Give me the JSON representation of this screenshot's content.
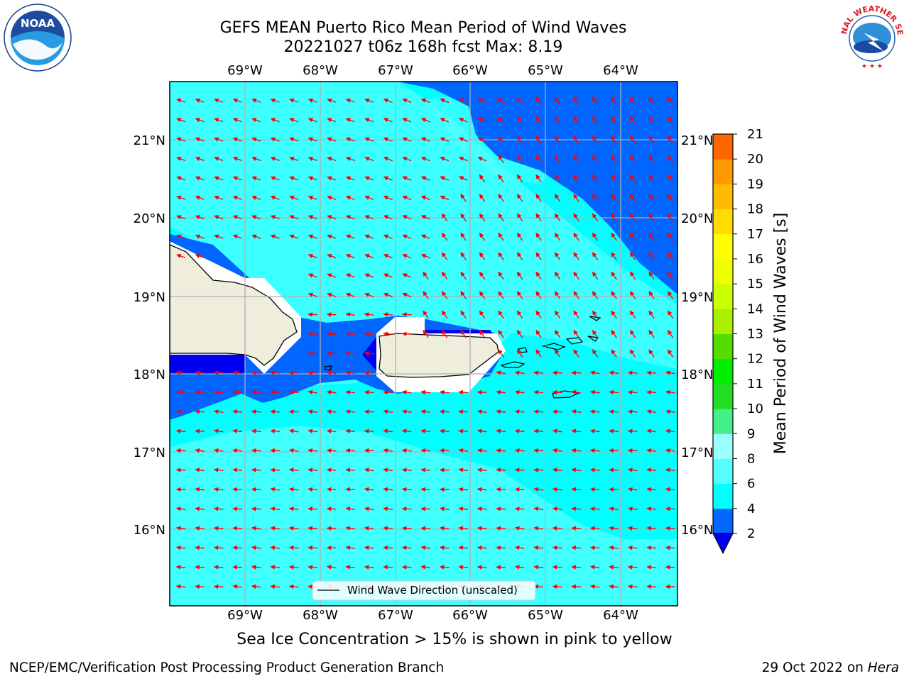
{
  "header": {
    "title_line1": "GEFS MEAN Puerto Rico Mean Period of Wind Waves",
    "title_line2": "20221027 t06z 168h fcst   Max: 8.19"
  },
  "map": {
    "lon_ticks": [
      "69°W",
      "68°W",
      "67°W",
      "66°W",
      "65°W",
      "64°W"
    ],
    "lat_ticks": [
      "21°N",
      "20°N",
      "19°N",
      "18°N",
      "17°N",
      "16°N"
    ],
    "legend_label": "Wind Wave Direction (unscaled)",
    "arrow_color": "#ff0000",
    "land_color": "#efeedc",
    "ocean_colors": {
      "2-4": "#0066ff",
      "0-2": "#0000ee",
      "4-6": "#00ffff",
      "6-8": "#55ffff"
    }
  },
  "colorbar": {
    "label": "Mean Period of Wind Waves [s]",
    "ticks": [
      "2",
      "4",
      "6",
      "8",
      "9",
      "10",
      "11",
      "12",
      "13",
      "14",
      "15",
      "16",
      "17",
      "18",
      "19",
      "20",
      "21"
    ],
    "colors": [
      "#0066ff",
      "#00ffff",
      "#55ffff",
      "#99ffff",
      "#44ee88",
      "#22dd22",
      "#00ee00",
      "#55dd00",
      "#aaee00",
      "#ccff00",
      "#eeff00",
      "#ffff00",
      "#ffdd00",
      "#ffbb00",
      "#ff9900",
      "#ff6600",
      "#ff3300",
      "#ff0000"
    ],
    "extend_color": "#0000ee"
  },
  "footer": {
    "sea_ice_note": "Sea Ice Concentration > 15% is shown in pink to yellow",
    "branch": "NCEP/EMC/Verification Post Processing Product Generation Branch",
    "date": "29 Oct 2022 on ",
    "machine": "Hera"
  },
  "logos": {
    "noaa_text": "NOAA",
    "nws_text": "NATIONAL WEATHER SERVICE"
  }
}
